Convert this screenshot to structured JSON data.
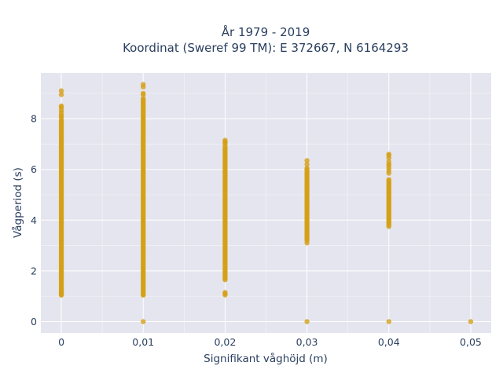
{
  "chart_data": {
    "type": "scatter",
    "title_line1": "År 1979 - 2019",
    "title_line2": "Koordinat (Sweref 99 TM): E 372667, N 6164293",
    "xlabel": "Signifikant våghöjd (m)",
    "ylabel": "Vågperiod (s)",
    "xlim": [
      -0.0025,
      0.0525
    ],
    "ylim": [
      -0.45,
      9.8
    ],
    "x_ticks": [
      0,
      0.01,
      0.02,
      0.03,
      0.04,
      0.05
    ],
    "x_tick_labels": [
      "0",
      "0,01",
      "0,02",
      "0,03",
      "0,04",
      "0,05"
    ],
    "y_ticks": [
      0,
      2,
      4,
      6,
      8
    ],
    "y_tick_labels": [
      "0",
      "2",
      "4",
      "6",
      "8"
    ],
    "grid": true,
    "colors": {
      "marker": "#d4a017",
      "plot_bg": "#e5e5ef",
      "grid": "#ffffff",
      "text": "#2a3f5f"
    },
    "series": [
      {
        "x": 0,
        "ranges": [
          [
            1.05,
            7.95
          ]
        ],
        "points": [
          1.05,
          1.15,
          8.05,
          8.1,
          8.15,
          8.25,
          8.35,
          8.45,
          8.5,
          8.95,
          9.1
        ]
      },
      {
        "x": 0.01,
        "ranges": [
          [
            1.05,
            8.7
          ]
        ],
        "points": [
          0.0,
          1.05,
          8.75,
          8.8,
          8.95,
          9.0,
          9.25,
          9.35
        ]
      },
      {
        "x": 0.02,
        "ranges": [
          [
            1.65,
            6.85
          ]
        ],
        "points": [
          1.05,
          1.1,
          1.15,
          6.9,
          7.0,
          7.05,
          7.1,
          7.15
        ]
      },
      {
        "x": 0.03,
        "ranges": [
          [
            3.25,
            6.05
          ]
        ],
        "points": [
          0.0,
          3.1,
          3.2,
          6.2,
          6.35
        ]
      },
      {
        "x": 0.04,
        "ranges": [
          [
            3.8,
            5.6
          ]
        ],
        "points": [
          0.0,
          3.75,
          5.85,
          5.95,
          6.05,
          6.15,
          6.2,
          6.3,
          6.45,
          6.55,
          6.6
        ]
      },
      {
        "x": 0.05,
        "ranges": [],
        "points": [
          0.0
        ]
      }
    ]
  }
}
